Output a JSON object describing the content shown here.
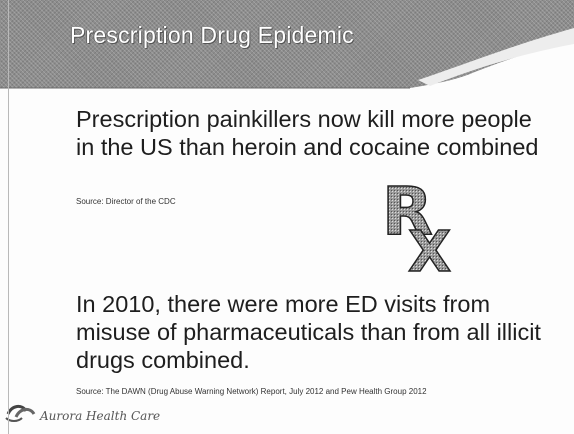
{
  "slide": {
    "title": "Prescription Drug Epidemic",
    "point_1": "Prescription painkillers now kill more people in the US than heroin and cocaine combined",
    "source_1": "Source: Director of the CDC",
    "point_2": "In 2010, there were more ED visits from misuse of pharmaceuticals than from all illicit drugs combined.",
    "source_2": "Source: The DAWN (Drug Abuse Warning Network) Report, July 2012 and Pew Health Group 2012",
    "rx_glyph_r": "R",
    "rx_glyph_x": "X"
  },
  "footer": {
    "brand": "Aurora Health Care",
    "logo_icon": "aurora-logo-icon"
  },
  "colors": {
    "header_band": "#8d8d8d",
    "title_text": "#ffffff",
    "body_text": "#1e1e1e"
  }
}
